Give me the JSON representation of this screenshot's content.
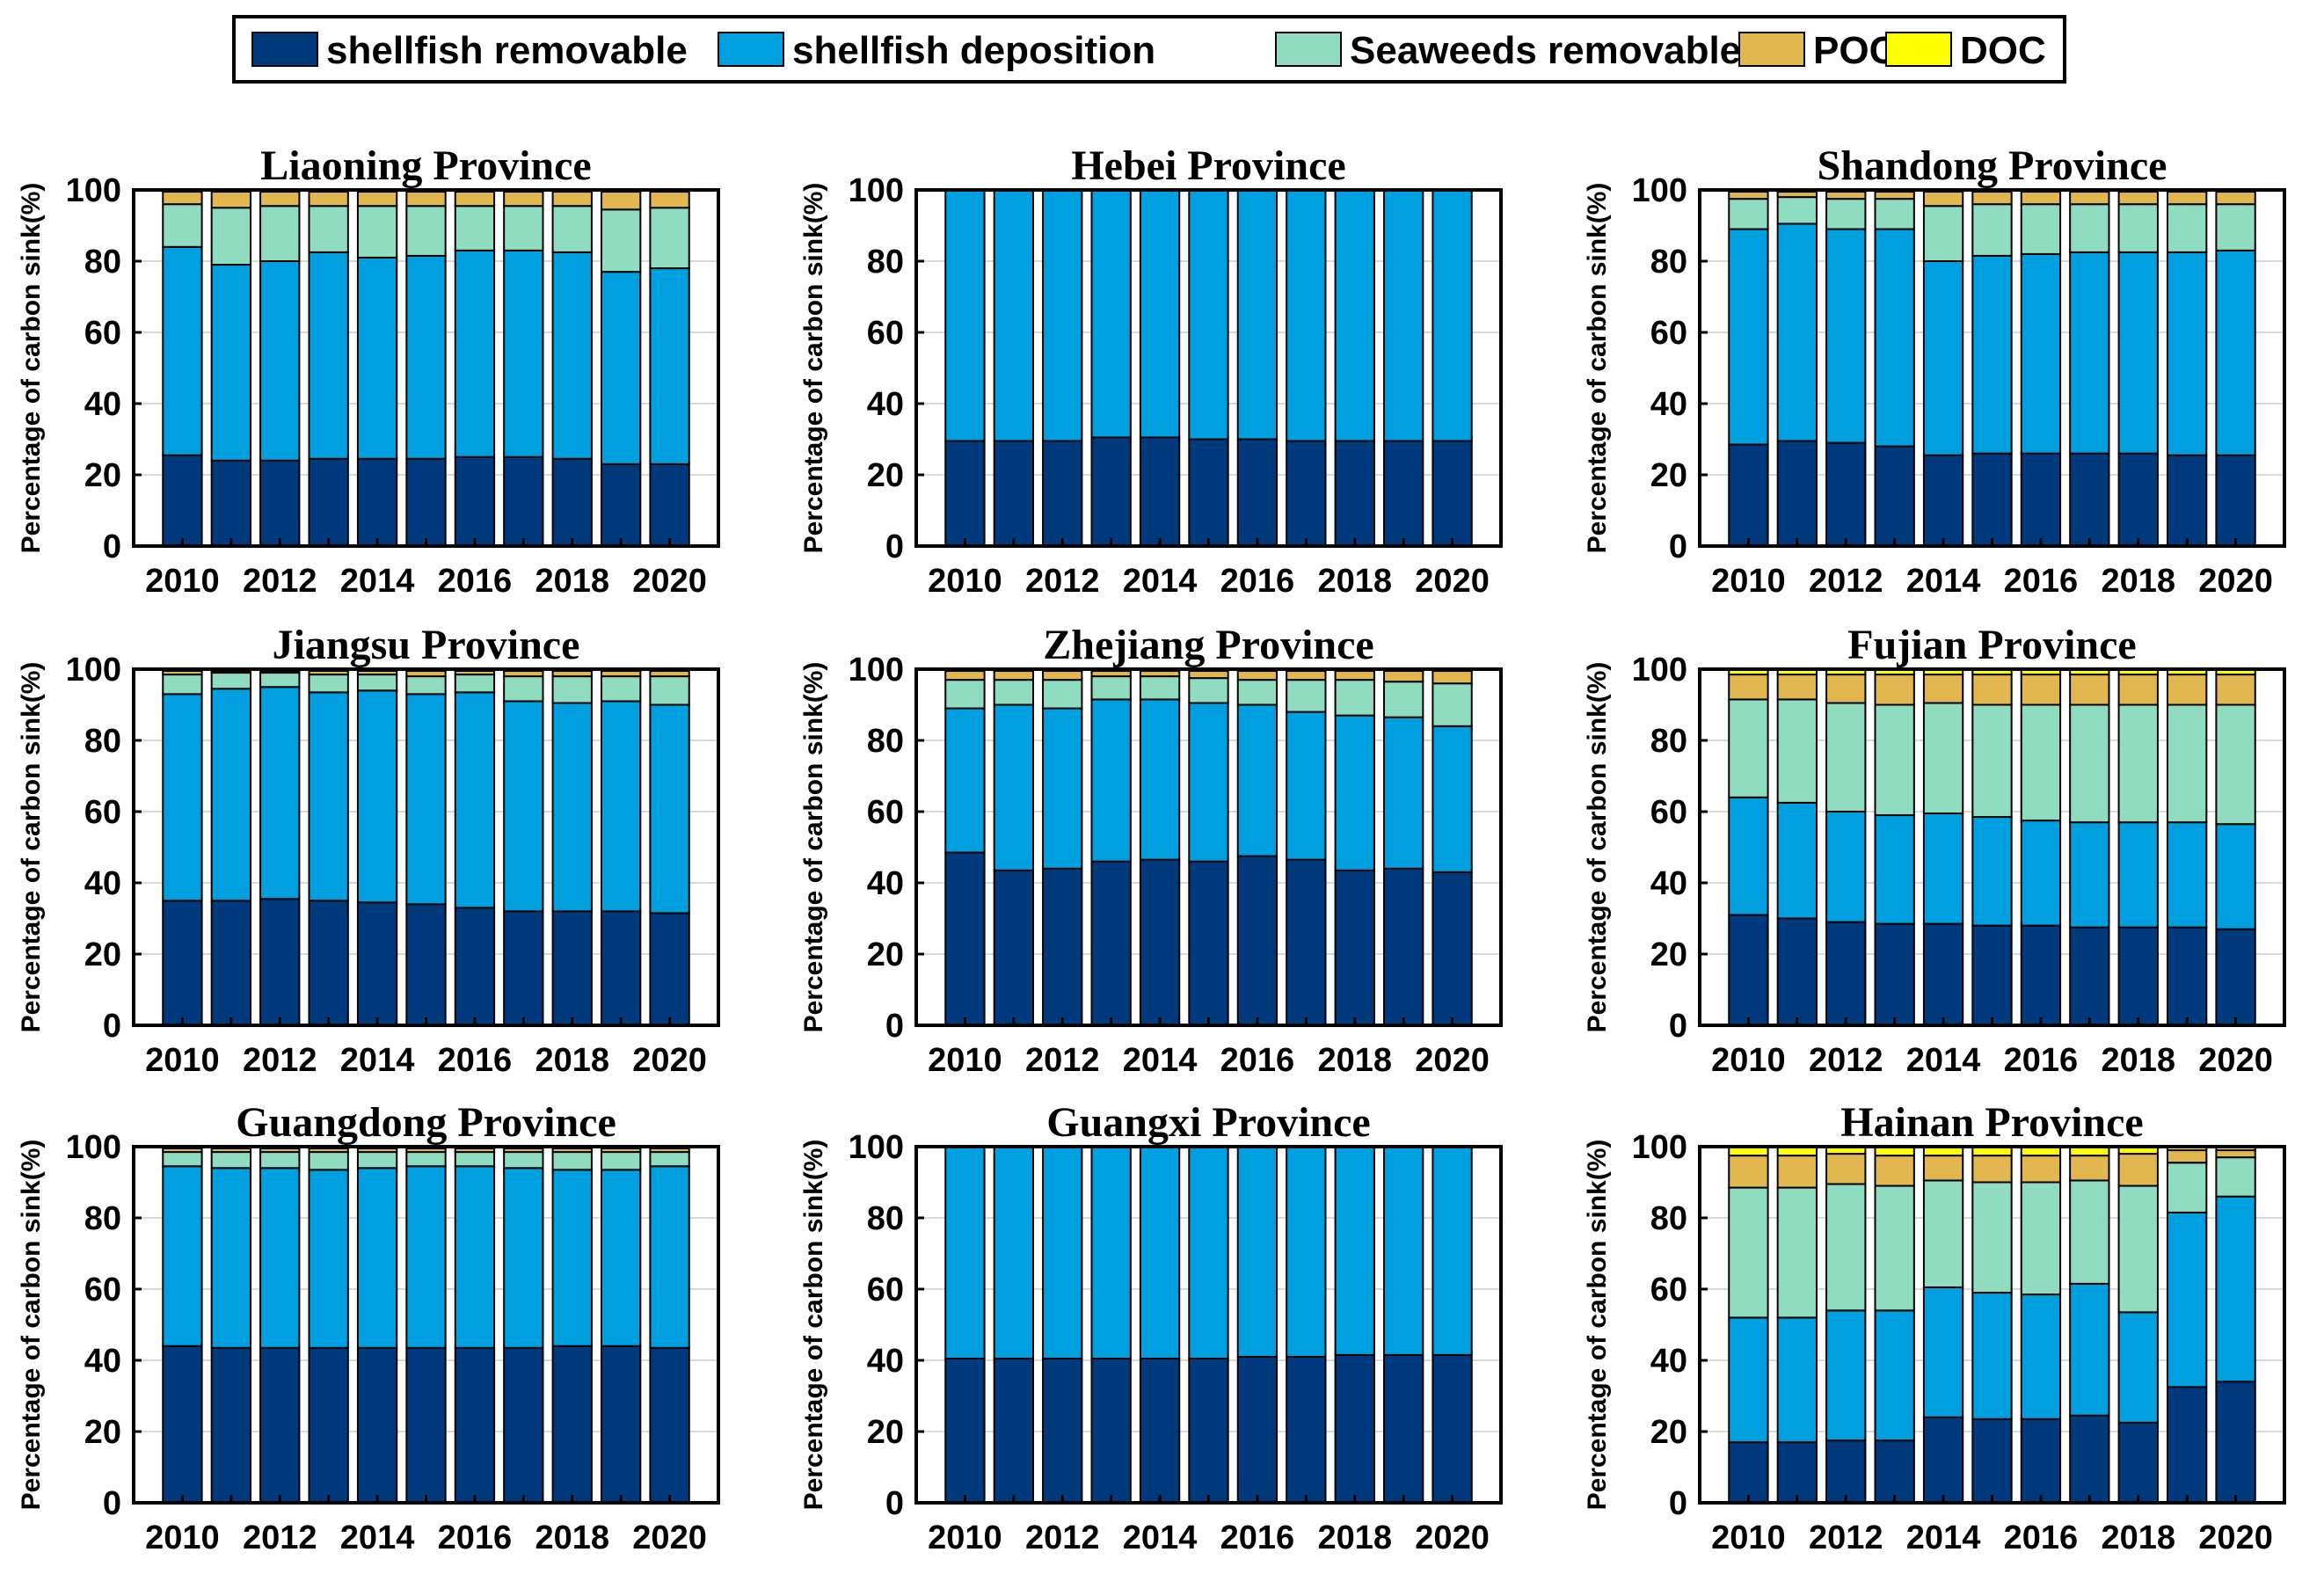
{
  "chart_data": {
    "type": "stacked-bar",
    "ylabel": "Percentage of carbon sink(%)",
    "ylim": [
      0,
      100
    ],
    "yticks": [
      0,
      20,
      40,
      60,
      80,
      100
    ],
    "x": [
      2010,
      2011,
      2012,
      2013,
      2014,
      2015,
      2016,
      2017,
      2018,
      2019,
      2020
    ],
    "xtick_labels": [
      "2010",
      "2012",
      "2014",
      "2016",
      "2018",
      "2020"
    ],
    "legend": [
      {
        "name": "shellfish removable",
        "color": "#003a7d"
      },
      {
        "name": "shellfish deposition",
        "color": "#009fdf"
      },
      {
        "name": "Seaweeds removable",
        "color": "#90dcc0"
      },
      {
        "name": "POC",
        "color": "#e3b74f"
      },
      {
        "name": "DOC",
        "color": "#ffff00"
      }
    ],
    "panels": [
      {
        "title": "Liaoning Province",
        "series": [
          {
            "name": "shellfish removable",
            "values": [
              25.5,
              24,
              24,
              24.5,
              24.5,
              24.5,
              25,
              25,
              24.5,
              23,
              23
            ]
          },
          {
            "name": "shellfish deposition",
            "values": [
              58.5,
              55,
              56,
              58,
              56.5,
              57,
              58,
              58,
              58,
              54,
              55
            ]
          },
          {
            "name": "Seaweeds removable",
            "values": [
              12,
              16,
              15.5,
              13,
              14.5,
              14,
              12.5,
              12.5,
              13,
              17.5,
              17
            ]
          },
          {
            "name": "POC",
            "values": [
              3.5,
              4.5,
              4,
              4,
              4,
              4,
              4,
              4,
              4,
              5,
              4.5
            ]
          },
          {
            "name": "DOC",
            "values": [
              0.5,
              0.5,
              0.5,
              0.5,
              0.5,
              0.5,
              0.5,
              0.5,
              0.5,
              0.5,
              0.5
            ]
          }
        ]
      },
      {
        "title": "Hebei Province",
        "series": [
          {
            "name": "shellfish removable",
            "values": [
              29.5,
              29.5,
              29.5,
              30.5,
              30.5,
              30,
              30,
              29.5,
              29.5,
              29.5,
              29.5
            ]
          },
          {
            "name": "shellfish deposition",
            "values": [
              70.5,
              70.5,
              70.5,
              69.5,
              69.5,
              70,
              70,
              70.5,
              70.5,
              70.5,
              70.5
            ]
          },
          {
            "name": "Seaweeds removable",
            "values": [
              0,
              0,
              0,
              0,
              0,
              0,
              0,
              0,
              0,
              0,
              0
            ]
          },
          {
            "name": "POC",
            "values": [
              0,
              0,
              0,
              0,
              0,
              0,
              0,
              0,
              0,
              0,
              0
            ]
          },
          {
            "name": "DOC",
            "values": [
              0,
              0,
              0,
              0,
              0,
              0,
              0,
              0,
              0,
              0,
              0
            ]
          }
        ]
      },
      {
        "title": "Shandong Province",
        "series": [
          {
            "name": "shellfish removable",
            "values": [
              28.5,
              29.5,
              29,
              28,
              25.5,
              26,
              26,
              26,
              26,
              25.5,
              25.5
            ]
          },
          {
            "name": "shellfish deposition",
            "values": [
              60.5,
              61,
              60,
              61,
              54.5,
              55.5,
              56,
              56.5,
              56.5,
              57,
              57.5
            ]
          },
          {
            "name": "Seaweeds removable",
            "values": [
              8.5,
              7.5,
              8.5,
              8.5,
              15.5,
              14.5,
              14,
              13.5,
              13.5,
              13.5,
              13
            ]
          },
          {
            "name": "POC",
            "values": [
              2,
              1.5,
              2,
              2,
              4,
              3.5,
              3.5,
              3.5,
              3.5,
              3.5,
              3.5
            ]
          },
          {
            "name": "DOC",
            "values": [
              0.5,
              0.5,
              0.5,
              0.5,
              0.5,
              0.5,
              0.5,
              0.5,
              0.5,
              0.5,
              0.5
            ]
          }
        ]
      },
      {
        "title": "Jiangsu Province",
        "series": [
          {
            "name": "shellfish removable",
            "values": [
              35,
              35,
              35.5,
              35,
              34.5,
              34,
              33,
              32,
              32,
              32,
              31.5
            ]
          },
          {
            "name": "shellfish deposition",
            "values": [
              58,
              59.5,
              59.5,
              58.5,
              59.5,
              59,
              60.5,
              59,
              58.5,
              59,
              58.5
            ]
          },
          {
            "name": "Seaweeds removable",
            "values": [
              5.5,
              4.5,
              4,
              5,
              4.5,
              5,
              5,
              7,
              7.5,
              7,
              8
            ]
          },
          {
            "name": "POC",
            "values": [
              1,
              0.5,
              0.5,
              1,
              1,
              1.5,
              1,
              1.5,
              1.5,
              1.5,
              1.5
            ]
          },
          {
            "name": "DOC",
            "values": [
              0.5,
              0.5,
              0.5,
              0.5,
              0.5,
              0.5,
              0.5,
              0.5,
              0.5,
              0.5,
              0.5
            ]
          }
        ]
      },
      {
        "title": "Zhejiang Province",
        "series": [
          {
            "name": "shellfish removable",
            "values": [
              48.5,
              43.5,
              44,
              46,
              46.5,
              46,
              47.5,
              46.5,
              43.5,
              44,
              43
            ]
          },
          {
            "name": "shellfish deposition",
            "values": [
              40.5,
              46.5,
              45,
              45.5,
              45,
              44.5,
              42.5,
              41.5,
              43.5,
              42.5,
              41
            ]
          },
          {
            "name": "Seaweeds removable",
            "values": [
              8,
              7,
              8,
              6.5,
              6.5,
              7,
              7,
              9,
              10,
              10,
              12
            ]
          },
          {
            "name": "POC",
            "values": [
              2.5,
              2.5,
              2.5,
              1.5,
              1.5,
              2,
              2.5,
              2.5,
              2.5,
              3,
              3.5
            ]
          },
          {
            "name": "DOC",
            "values": [
              0.5,
              0.5,
              0.5,
              0.5,
              0.5,
              0.5,
              0.5,
              0.5,
              0.5,
              0.5,
              0.5
            ]
          }
        ]
      },
      {
        "title": "Fujian Province",
        "series": [
          {
            "name": "shellfish removable",
            "values": [
              31,
              30,
              29,
              28.5,
              28.5,
              28,
              28,
              27.5,
              27.5,
              27.5,
              27
            ]
          },
          {
            "name": "shellfish deposition",
            "values": [
              33,
              32.5,
              31,
              30.5,
              31,
              30.5,
              29.5,
              29.5,
              29.5,
              29.5,
              29.5
            ]
          },
          {
            "name": "Seaweeds removable",
            "values": [
              27.5,
              29,
              30.5,
              31,
              31,
              31.5,
              32.5,
              33,
              33,
              33,
              33.5
            ]
          },
          {
            "name": "POC",
            "values": [
              7,
              7,
              8,
              8.5,
              8,
              8.5,
              8.5,
              8.5,
              8.5,
              8.5,
              8.5
            ]
          },
          {
            "name": "DOC",
            "values": [
              1.5,
              1.5,
              1.5,
              1.5,
              1.5,
              1.5,
              1.5,
              1.5,
              1.5,
              1.5,
              1.5
            ]
          }
        ]
      },
      {
        "title": "Guangdong Province",
        "series": [
          {
            "name": "shellfish removable",
            "values": [
              44,
              43.5,
              43.5,
              43.5,
              43.5,
              43.5,
              43.5,
              43.5,
              44,
              44,
              43.5
            ]
          },
          {
            "name": "shellfish deposition",
            "values": [
              50.5,
              50.5,
              50.5,
              50,
              50.5,
              51,
              51,
              50.5,
              49.5,
              49.5,
              51
            ]
          },
          {
            "name": "Seaweeds removable",
            "values": [
              4,
              4.5,
              4.5,
              5,
              4.5,
              4,
              4,
              4.5,
              5,
              5,
              4
            ]
          },
          {
            "name": "POC",
            "values": [
              1,
              1,
              1,
              1,
              1,
              1,
              1,
              1,
              1,
              1,
              1
            ]
          },
          {
            "name": "DOC",
            "values": [
              0.5,
              0.5,
              0.5,
              0.5,
              0.5,
              0.5,
              0.5,
              0.5,
              0.5,
              0.5,
              0.5
            ]
          }
        ]
      },
      {
        "title": "Guangxi Province",
        "series": [
          {
            "name": "shellfish removable",
            "values": [
              40.5,
              40.5,
              40.5,
              40.5,
              40.5,
              40.5,
              41,
              41,
              41.5,
              41.5,
              41.5
            ]
          },
          {
            "name": "shellfish deposition",
            "values": [
              59.5,
              59.5,
              59.5,
              59.5,
              59.5,
              59.5,
              59,
              59,
              58.5,
              58.5,
              58.5
            ]
          },
          {
            "name": "Seaweeds removable",
            "values": [
              0,
              0,
              0,
              0,
              0,
              0,
              0,
              0,
              0,
              0,
              0
            ]
          },
          {
            "name": "POC",
            "values": [
              0,
              0,
              0,
              0,
              0,
              0,
              0,
              0,
              0,
              0,
              0
            ]
          },
          {
            "name": "DOC",
            "values": [
              0,
              0,
              0,
              0,
              0,
              0,
              0,
              0,
              0,
              0,
              0
            ]
          }
        ]
      },
      {
        "title": "Hainan Province",
        "series": [
          {
            "name": "shellfish removable",
            "values": [
              17,
              17,
              17.5,
              17.5,
              24,
              23.5,
              23.5,
              24.5,
              22.5,
              32.5,
              34
            ]
          },
          {
            "name": "shellfish deposition",
            "values": [
              35,
              35,
              36.5,
              36.5,
              36.5,
              35.5,
              35,
              37,
              31,
              49,
              52
            ]
          },
          {
            "name": "Seaweeds removable",
            "values": [
              36.5,
              36.5,
              35.5,
              35,
              30,
              31,
              31.5,
              29,
              35.5,
              14,
              11
            ]
          },
          {
            "name": "POC",
            "values": [
              9,
              9,
              8.5,
              8.5,
              7,
              7.5,
              7.5,
              7,
              9,
              3.5,
              2
            ]
          },
          {
            "name": "DOC",
            "values": [
              2.5,
              2.5,
              2,
              2.5,
              2.5,
              2.5,
              2.5,
              2.5,
              2,
              1,
              1
            ]
          }
        ]
      }
    ]
  }
}
